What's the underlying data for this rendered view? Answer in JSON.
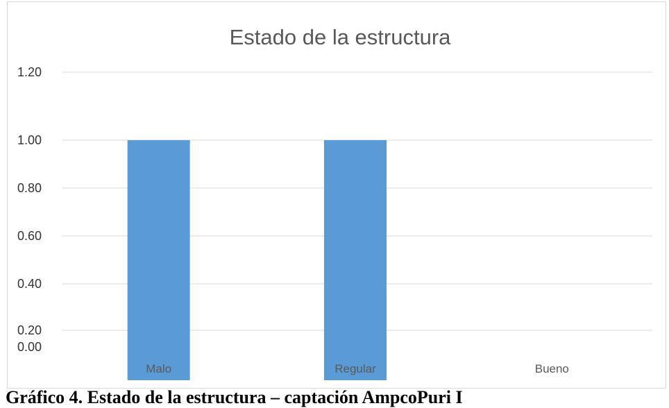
{
  "chart_data": {
    "type": "bar",
    "title": "Estado de la estructura",
    "categories": [
      "Malo",
      "Regular",
      "Bueno"
    ],
    "values": [
      1,
      1,
      0
    ],
    "y_ticks": [
      "0.00",
      "0.20",
      "0.40",
      "0.60",
      "0.80",
      "1.00",
      "1.20"
    ],
    "ylim": [
      0,
      1.2
    ],
    "xlabel": "",
    "ylabel": "",
    "grid": true,
    "bar_color": "#5b9bd5"
  },
  "caption": "Gráfico 4. Estado de la estructura – captación AmpcoPuri I"
}
